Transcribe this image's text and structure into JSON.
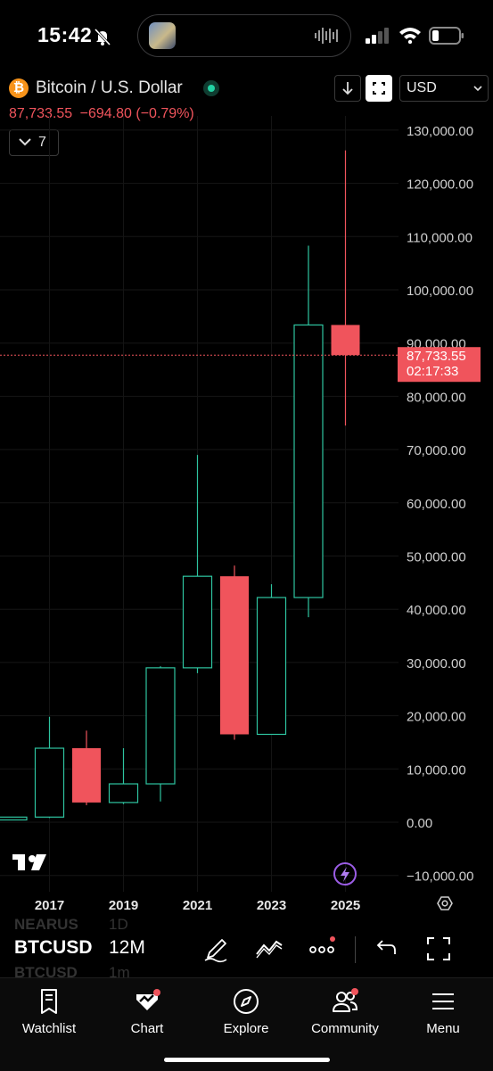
{
  "status_bar": {
    "time": "15:42",
    "icons": [
      "bell-muted-icon",
      "cellular-signal-icon",
      "wifi-icon",
      "battery-icon",
      "audio-waveform-icon"
    ]
  },
  "header": {
    "pair_title": "Bitcoin / U.S. Dollar",
    "price": "87,733.55",
    "change": "−694.80",
    "change_pct": "(−0.79%)",
    "indicators_count": "7",
    "currency": "USD",
    "colors": {
      "down": "#f0545c",
      "up": "#2ec4a0",
      "btc": "#f7931a"
    }
  },
  "price_label": {
    "price": "87,733.55",
    "countdown": "02:17:33"
  },
  "chart_data": {
    "type": "candlestick",
    "x_ticks": [
      "2017",
      "2019",
      "2021",
      "2023",
      "2025"
    ],
    "y_ticks": [
      "130,000.00",
      "120,000.00",
      "110,000.00",
      "100,000.00",
      "90,000.00",
      "80,000.00",
      "70,000.00",
      "60,000.00",
      "50,000.00",
      "40,000.00",
      "30,000.00",
      "20,000.00",
      "10,000.00",
      "0.00",
      "−10,000.00"
    ],
    "ylim": [
      -10000,
      130000
    ],
    "grid": true,
    "last_price": 87733.55,
    "candles": [
      {
        "year": 2016,
        "open": 430,
        "high": 980,
        "low": 360,
        "close": 960
      },
      {
        "year": 2017,
        "open": 960,
        "high": 19800,
        "low": 780,
        "close": 13900
      },
      {
        "year": 2018,
        "open": 13900,
        "high": 17200,
        "low": 3200,
        "close": 3700
      },
      {
        "year": 2019,
        "open": 3700,
        "high": 13900,
        "low": 3400,
        "close": 7200
      },
      {
        "year": 2020,
        "open": 7200,
        "high": 29300,
        "low": 3900,
        "close": 29000
      },
      {
        "year": 2021,
        "open": 29000,
        "high": 69000,
        "low": 28000,
        "close": 46200
      },
      {
        "year": 2022,
        "open": 46200,
        "high": 48200,
        "low": 15500,
        "close": 16500
      },
      {
        "year": 2023,
        "open": 16500,
        "high": 44700,
        "low": 16500,
        "close": 42200
      },
      {
        "year": 2024,
        "open": 42200,
        "high": 108300,
        "low": 38500,
        "close": 93400
      },
      {
        "year": 2025,
        "open": 93400,
        "high": 126200,
        "low": 74500,
        "close": 87733.55
      }
    ]
  },
  "toolbar": {
    "ghost_symbol_1": "NEARUS",
    "ghost_interval_1": "1D",
    "symbol": "BTCUSD",
    "interval": "12M",
    "ghost_symbol_2": "BTCUSD",
    "ghost_interval_2": "1m",
    "tools": [
      "draw-icon",
      "indicators-icon",
      "more-icon",
      "undo-icon",
      "fullscreen-icon"
    ]
  },
  "bottom_nav": {
    "items": [
      {
        "label": "Watchlist",
        "icon": "bookmark-list-icon"
      },
      {
        "label": "Chart",
        "icon": "chart-icon"
      },
      {
        "label": "Explore",
        "icon": "compass-icon"
      },
      {
        "label": "Community",
        "icon": "community-icon"
      },
      {
        "label": "Menu",
        "icon": "hamburger-icon"
      }
    ]
  }
}
